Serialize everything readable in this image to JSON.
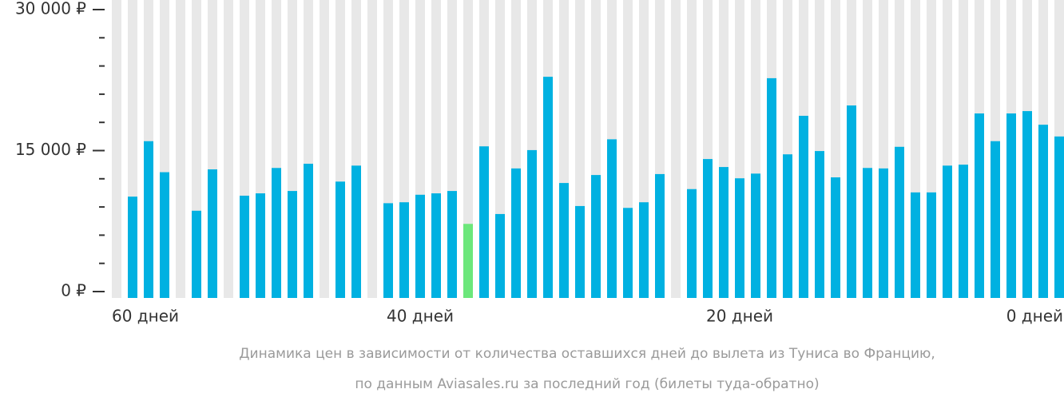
{
  "chart_data": {
    "type": "bar",
    "caption": [
      "Динамика цен в зависимости от количества оставшихся дней до вылета из Туниса во Францию,",
      "по данным Aviasales.ru за последний год (билеты туда-обратно)"
    ],
    "categories": [
      "60 дней",
      null,
      null,
      null,
      null,
      null,
      null,
      null,
      null,
      null,
      null,
      null,
      null,
      null,
      null,
      null,
      null,
      null,
      null,
      "40 дней",
      null,
      null,
      null,
      null,
      null,
      null,
      null,
      null,
      null,
      null,
      null,
      null,
      null,
      null,
      null,
      null,
      null,
      null,
      null,
      "20 дней",
      null,
      null,
      null,
      null,
      null,
      null,
      null,
      null,
      null,
      null,
      null,
      null,
      null,
      null,
      null,
      null,
      null,
      null,
      null,
      "0 дней"
    ],
    "values": [
      null,
      10100,
      16000,
      12700,
      null,
      8600,
      13000,
      null,
      10200,
      10450,
      13150,
      10700,
      13600,
      null,
      11700,
      13400,
      null,
      9400,
      9500,
      10300,
      10450,
      10700,
      7200,
      15450,
      8250,
      13100,
      15050,
      22850,
      11550,
      9100,
      12400,
      16200,
      8900,
      9500,
      12500,
      null,
      10900,
      14100,
      13250,
      12050,
      12550,
      22700,
      14600,
      18700,
      14950,
      12150,
      19800,
      13150,
      13100,
      15400,
      10550,
      10550,
      13400,
      13500,
      18950,
      16000,
      18950,
      19200,
      17750,
      16500
    ],
    "color": "#00b1e1",
    "highlight_color": "#6ce77b",
    "highlight": [
      22
    ],
    "background_color": "#e8e8e8",
    "ylim": [
      0,
      30000
    ],
    "yticks": [
      {
        "value": 0,
        "label": "0 ₽"
      },
      {
        "value": 15000,
        "label": "15 000 ₽"
      },
      {
        "value": 30000,
        "label": "30 000 ₽"
      }
    ],
    "yticks_minor": [
      3000,
      6000,
      9000,
      12000,
      18000,
      21000,
      24000,
      27000
    ]
  }
}
